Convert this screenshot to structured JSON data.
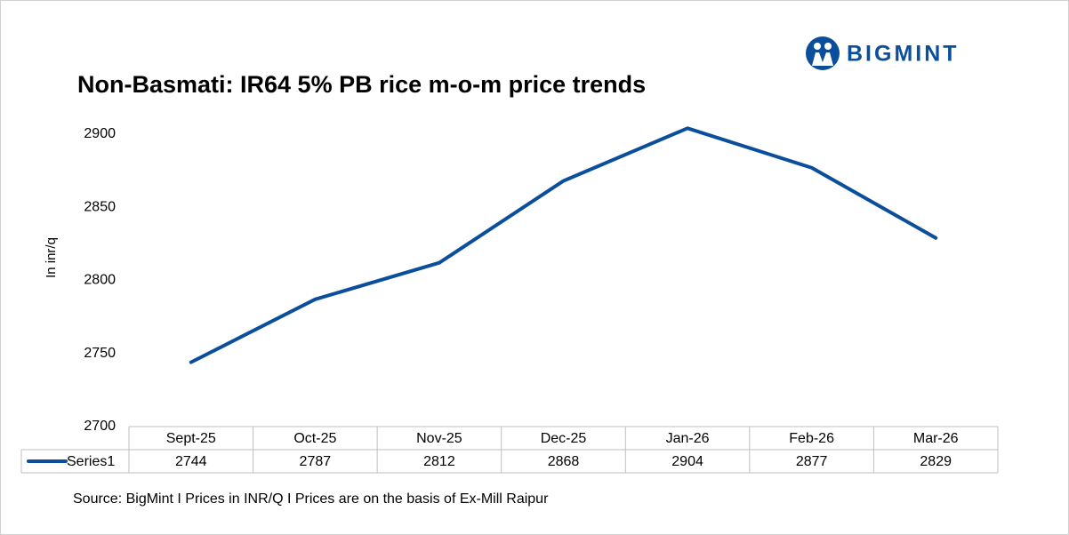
{
  "brand": "BIGMINT",
  "chart_data": {
    "type": "line",
    "title": "Non-Basmati: IR64 5% PB rice m-o-m price trends",
    "y_label": "In inr/q",
    "categories": [
      "Sept-25",
      "Oct-25",
      "Nov-25",
      "Dec-25",
      "Jan-26",
      "Feb-26",
      "Mar-26"
    ],
    "series": [
      {
        "name": "Series1",
        "color": "#0b4f9c",
        "values": [
          2744,
          2787,
          2812,
          2868,
          2904,
          2877,
          2829
        ]
      }
    ],
    "ylim": [
      2700,
      2920
    ],
    "yticks": [
      2700,
      2750,
      2800,
      2850,
      2900
    ],
    "grid": false,
    "source": "Source: BigMint I Prices in INR/Q I Prices are on the basis of Ex-Mill Raipur"
  }
}
